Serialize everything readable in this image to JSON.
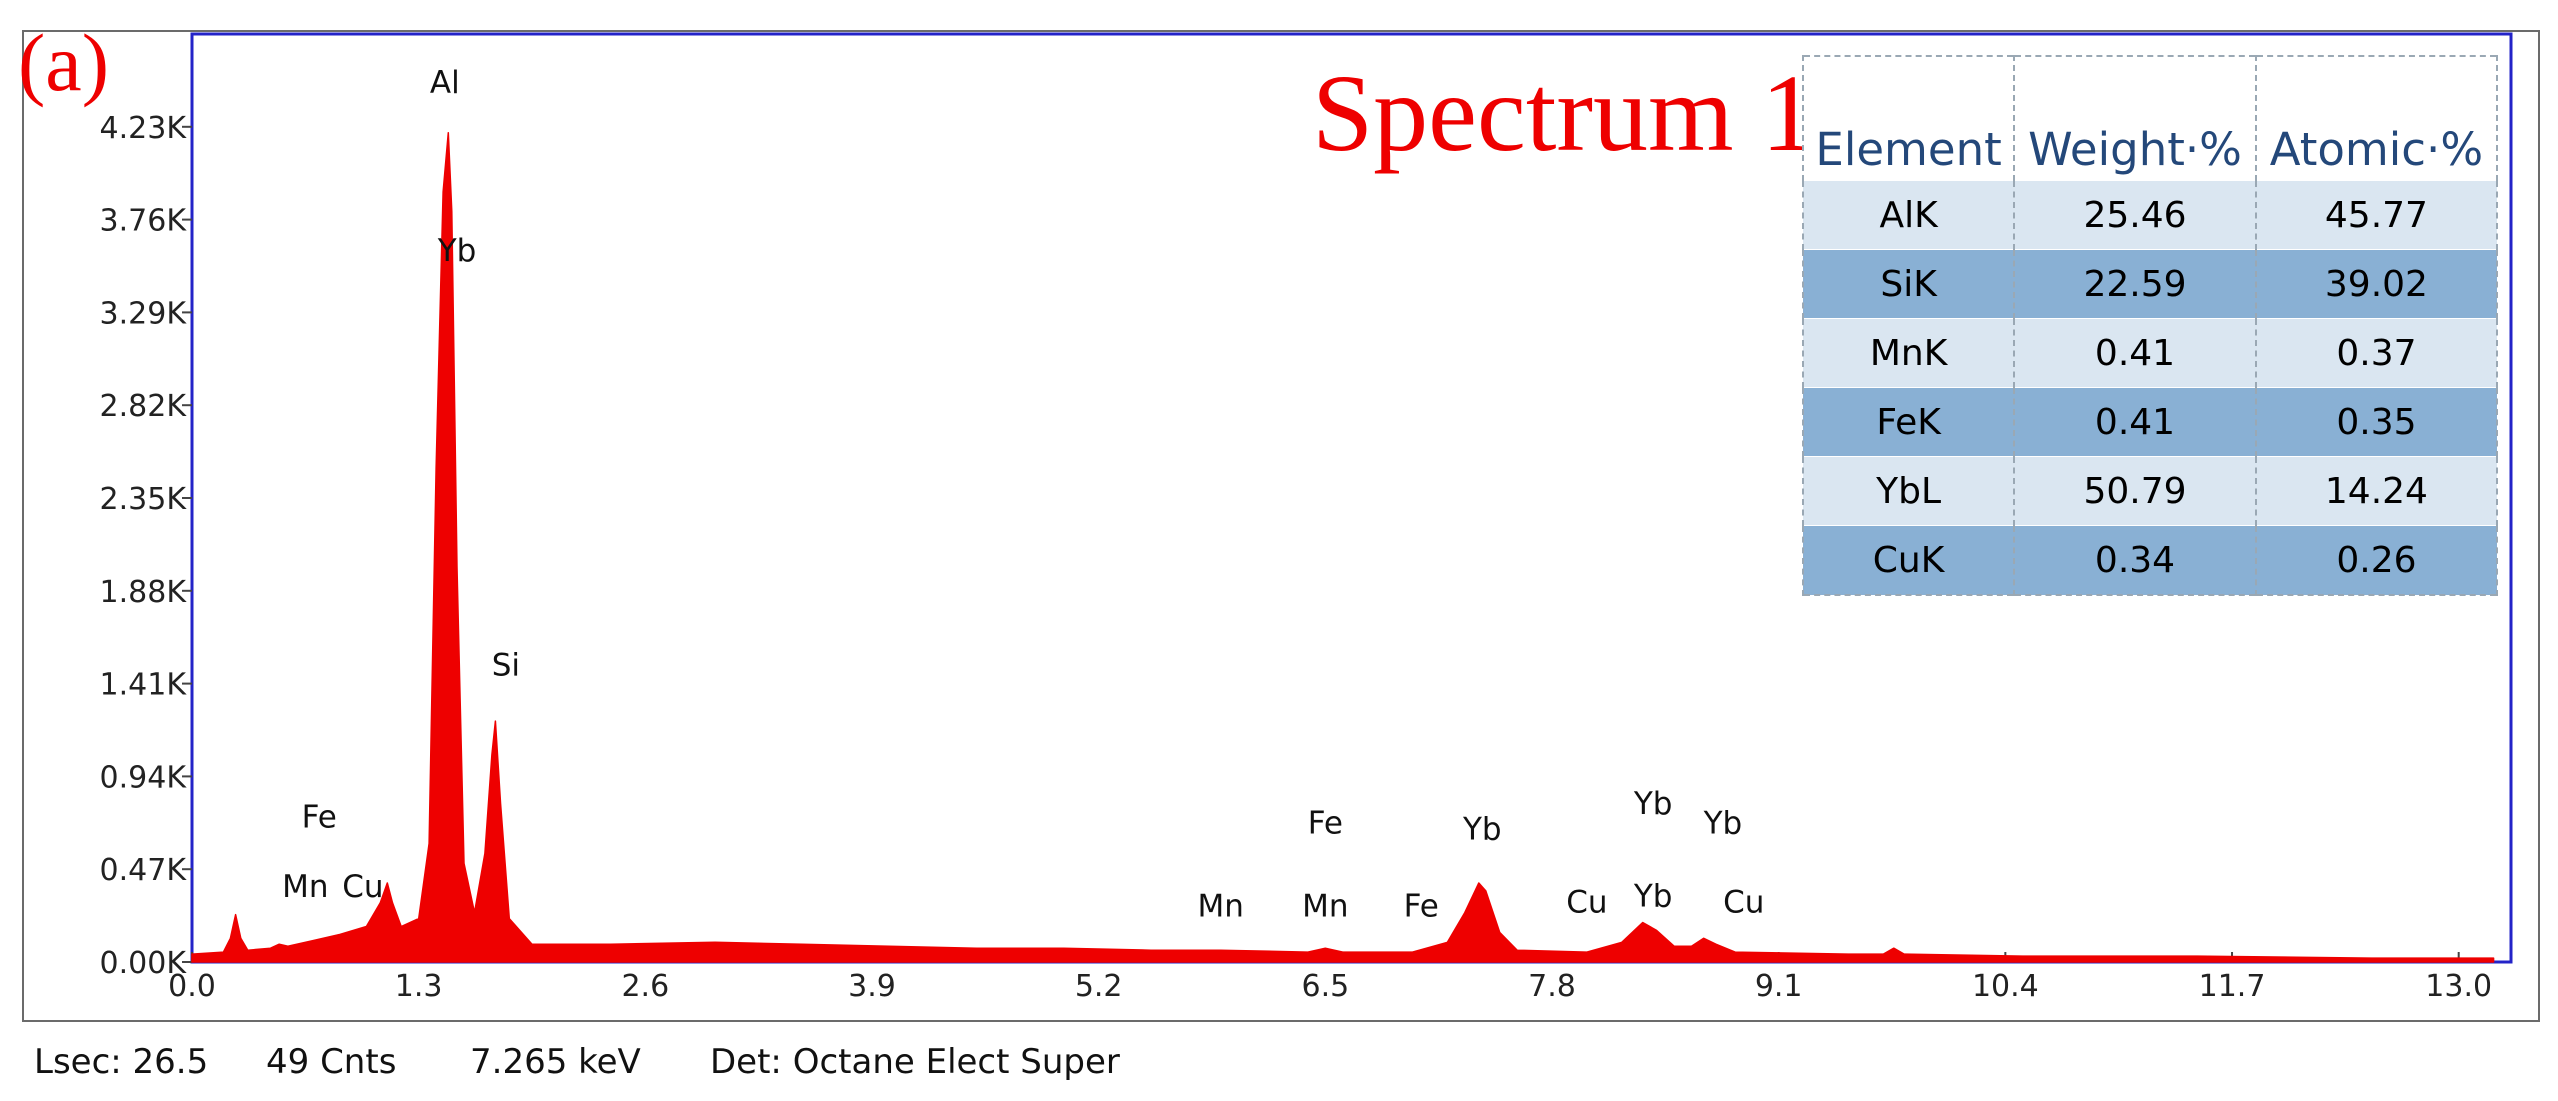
{
  "panel_label": "(a)",
  "status": {
    "lsec": "Lsec: 26.5",
    "counts": "49 Cnts",
    "energy": "7.265 keV",
    "detector": "Det: Octane Elect Super"
  },
  "chart_data": {
    "type": "area",
    "title": "Spectrum 1",
    "xlabel": "",
    "ylabel": "",
    "xlim": [
      0.0,
      13.3
    ],
    "ylim": [
      0.0,
      4.7
    ],
    "x_ticks": [
      "0.0",
      "1.3",
      "2.6",
      "3.9",
      "5.2",
      "6.5",
      "7.8",
      "9.1",
      "10.4",
      "11.7",
      "13.0"
    ],
    "x_tick_values": [
      0.0,
      1.3,
      2.6,
      3.9,
      5.2,
      6.5,
      7.8,
      9.1,
      10.4,
      11.7,
      13.0
    ],
    "y_ticks": [
      "0.00K",
      "0.47K",
      "0.94K",
      "1.41K",
      "1.88K",
      "2.35K",
      "2.82K",
      "3.29K",
      "3.76K",
      "4.23K"
    ],
    "y_tick_values": [
      0.0,
      0.47,
      0.94,
      1.41,
      1.88,
      2.35,
      2.82,
      3.29,
      3.76,
      4.23
    ],
    "color": "#ee0000",
    "series": [
      {
        "values": [
          [
            0.0,
            0.04
          ],
          [
            0.18,
            0.05
          ],
          [
            0.22,
            0.12
          ],
          [
            0.25,
            0.24
          ],
          [
            0.28,
            0.12
          ],
          [
            0.32,
            0.06
          ],
          [
            0.45,
            0.07
          ],
          [
            0.5,
            0.09
          ],
          [
            0.55,
            0.08
          ],
          [
            0.7,
            0.11
          ],
          [
            0.85,
            0.14
          ],
          [
            1.0,
            0.18
          ],
          [
            1.08,
            0.3
          ],
          [
            1.12,
            0.4
          ],
          [
            1.15,
            0.3
          ],
          [
            1.2,
            0.18
          ],
          [
            1.3,
            0.22
          ],
          [
            1.36,
            0.6
          ],
          [
            1.4,
            2.5
          ],
          [
            1.44,
            3.9
          ],
          [
            1.47,
            4.2
          ],
          [
            1.49,
            3.8
          ],
          [
            1.52,
            2.0
          ],
          [
            1.56,
            0.5
          ],
          [
            1.62,
            0.25
          ],
          [
            1.68,
            0.55
          ],
          [
            1.72,
            1.05
          ],
          [
            1.74,
            1.22
          ],
          [
            1.77,
            0.8
          ],
          [
            1.82,
            0.22
          ],
          [
            1.95,
            0.09
          ],
          [
            2.4,
            0.09
          ],
          [
            3.0,
            0.1
          ],
          [
            3.5,
            0.09
          ],
          [
            4.0,
            0.08
          ],
          [
            4.5,
            0.07
          ],
          [
            5.0,
            0.07
          ],
          [
            5.5,
            0.06
          ],
          [
            5.9,
            0.06
          ],
          [
            6.4,
            0.05
          ],
          [
            6.5,
            0.07
          ],
          [
            6.6,
            0.05
          ],
          [
            7.0,
            0.05
          ],
          [
            7.2,
            0.1
          ],
          [
            7.3,
            0.25
          ],
          [
            7.38,
            0.4
          ],
          [
            7.42,
            0.36
          ],
          [
            7.5,
            0.15
          ],
          [
            7.6,
            0.06
          ],
          [
            8.0,
            0.05
          ],
          [
            8.2,
            0.1
          ],
          [
            8.32,
            0.2
          ],
          [
            8.4,
            0.16
          ],
          [
            8.5,
            0.08
          ],
          [
            8.6,
            0.08
          ],
          [
            8.67,
            0.12
          ],
          [
            8.74,
            0.09
          ],
          [
            8.85,
            0.05
          ],
          [
            9.5,
            0.04
          ],
          [
            9.7,
            0.04
          ],
          [
            9.76,
            0.07
          ],
          [
            9.82,
            0.04
          ],
          [
            10.5,
            0.03
          ],
          [
            11.5,
            0.03
          ],
          [
            12.5,
            0.02
          ],
          [
            13.2,
            0.02
          ]
        ]
      }
    ],
    "peak_labels": [
      {
        "text": "Al",
        "x": 1.45,
        "y": 4.4
      },
      {
        "text": "Yb",
        "x": 1.52,
        "y": 3.55
      },
      {
        "text": "Si",
        "x": 1.8,
        "y": 1.45
      },
      {
        "text": "Fe",
        "x": 0.73,
        "y": 0.68
      },
      {
        "text": "Mn",
        "x": 0.65,
        "y": 0.33
      },
      {
        "text": "Cu",
        "x": 0.98,
        "y": 0.33
      },
      {
        "text": "Mn",
        "x": 5.9,
        "y": 0.23
      },
      {
        "text": "Fe",
        "x": 6.5,
        "y": 0.65
      },
      {
        "text": "Mn",
        "x": 6.5,
        "y": 0.23
      },
      {
        "text": "Fe",
        "x": 7.05,
        "y": 0.23
      },
      {
        "text": "Yb",
        "x": 7.4,
        "y": 0.62
      },
      {
        "text": "Cu",
        "x": 8.0,
        "y": 0.25
      },
      {
        "text": "Yb",
        "x": 8.38,
        "y": 0.75
      },
      {
        "text": "Yb",
        "x": 8.38,
        "y": 0.28
      },
      {
        "text": "Yb",
        "x": 8.78,
        "y": 0.65
      },
      {
        "text": "Cu",
        "x": 8.9,
        "y": 0.25
      }
    ]
  },
  "table": {
    "headers": [
      "Element",
      "Weight·%",
      "Atomic·%"
    ],
    "rows": [
      [
        "AlK",
        "25.46",
        "45.77"
      ],
      [
        "SiK",
        "22.59",
        "39.02"
      ],
      [
        "MnK",
        "0.41",
        "0.37"
      ],
      [
        "FeK",
        "0.41",
        "0.35"
      ],
      [
        "YbL",
        "50.79",
        "14.24"
      ],
      [
        "CuK",
        "0.34",
        "0.26"
      ]
    ]
  }
}
